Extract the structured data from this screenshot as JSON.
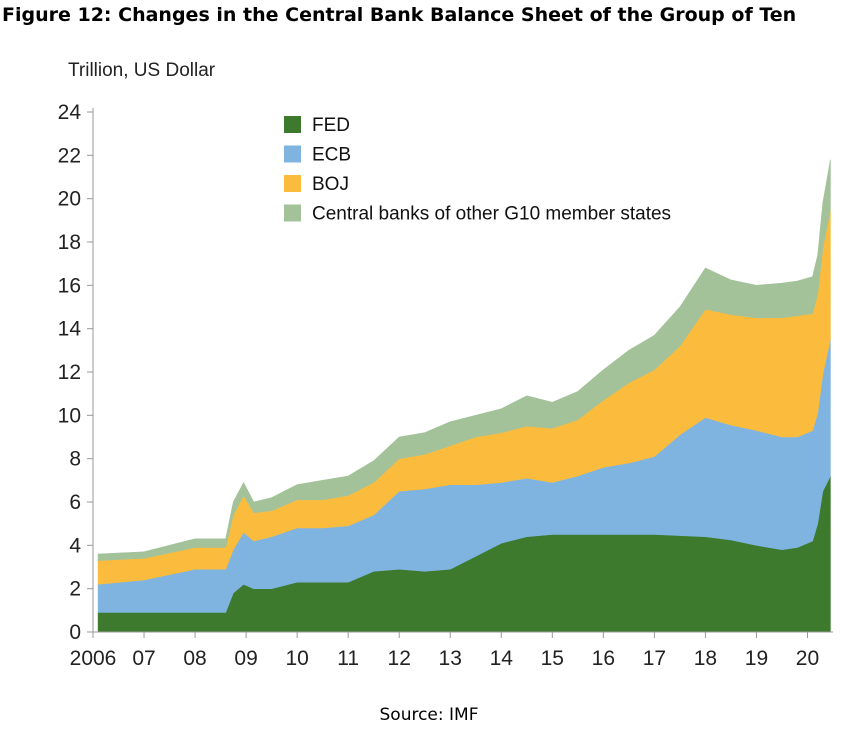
{
  "title": "Figure 12: Changes in the Central Bank Balance Sheet of the Group of Ten",
  "source": "Source: IMF",
  "chart_data": {
    "type": "area",
    "stacked": true,
    "ylabel": "Trillion, US Dollar",
    "xlabel": "",
    "ylim": [
      0,
      24
    ],
    "yticks": [
      0,
      2,
      4,
      6,
      8,
      10,
      12,
      14,
      16,
      18,
      20,
      22,
      24
    ],
    "xlim": [
      2006.0,
      2020.5
    ],
    "xticks": [
      {
        "value": 2006,
        "label": "2006"
      },
      {
        "value": 2007,
        "label": "07"
      },
      {
        "value": 2008,
        "label": "08"
      },
      {
        "value": 2009,
        "label": "09"
      },
      {
        "value": 2010,
        "label": "10"
      },
      {
        "value": 2011,
        "label": "11"
      },
      {
        "value": 2012,
        "label": "12"
      },
      {
        "value": 2013,
        "label": "13"
      },
      {
        "value": 2014,
        "label": "14"
      },
      {
        "value": 2015,
        "label": "15"
      },
      {
        "value": 2016,
        "label": "16"
      },
      {
        "value": 2017,
        "label": "17"
      },
      {
        "value": 2018,
        "label": "18"
      },
      {
        "value": 2019,
        "label": "19"
      },
      {
        "value": 2020,
        "label": "20"
      }
    ],
    "legend_position": "top-center",
    "grid": false,
    "x": [
      2006.1,
      2007.0,
      2008.0,
      2008.6,
      2008.75,
      2008.95,
      2009.15,
      2009.5,
      2010.0,
      2010.5,
      2011.0,
      2011.5,
      2012.0,
      2012.5,
      2013.0,
      2013.5,
      2014.0,
      2014.5,
      2015.0,
      2015.5,
      2016.0,
      2016.5,
      2017.0,
      2017.5,
      2018.0,
      2018.5,
      2019.0,
      2019.5,
      2019.8,
      2020.1,
      2020.2,
      2020.3,
      2020.45
    ],
    "series": [
      {
        "name": "FED",
        "color": "#3d7a2e",
        "values": [
          0.9,
          0.9,
          0.9,
          0.9,
          1.8,
          2.2,
          2.0,
          2.0,
          2.3,
          2.3,
          2.3,
          2.8,
          2.9,
          2.8,
          2.9,
          3.5,
          4.1,
          4.4,
          4.5,
          4.5,
          4.5,
          4.5,
          4.5,
          4.45,
          4.4,
          4.25,
          4.0,
          3.8,
          3.9,
          4.2,
          5.0,
          6.5,
          7.2
        ]
      },
      {
        "name": "ECB",
        "color": "#7fb4e0",
        "values": [
          1.3,
          1.5,
          2.0,
          2.0,
          2.0,
          2.4,
          2.2,
          2.4,
          2.5,
          2.5,
          2.6,
          2.6,
          3.6,
          3.8,
          3.9,
          3.3,
          2.8,
          2.7,
          2.4,
          2.7,
          3.1,
          3.3,
          3.6,
          4.65,
          5.5,
          5.3,
          5.3,
          5.2,
          5.1,
          5.1,
          5.1,
          5.4,
          6.3
        ]
      },
      {
        "name": "BOJ",
        "color": "#fbbc3e",
        "values": [
          1.1,
          1.0,
          1.0,
          1.0,
          1.6,
          1.7,
          1.3,
          1.2,
          1.3,
          1.3,
          1.4,
          1.5,
          1.5,
          1.6,
          1.8,
          2.2,
          2.3,
          2.4,
          2.5,
          2.6,
          3.1,
          3.7,
          4.0,
          4.1,
          5.0,
          5.1,
          5.2,
          5.5,
          5.6,
          5.4,
          5.5,
          5.8,
          6.0
        ]
      },
      {
        "name": "Central banks of other G10 member states",
        "color": "#a3c29a",
        "values": [
          0.3,
          0.3,
          0.4,
          0.4,
          0.6,
          0.6,
          0.5,
          0.6,
          0.7,
          0.9,
          0.9,
          1.0,
          1.0,
          1.0,
          1.1,
          1.0,
          1.1,
          1.4,
          1.2,
          1.3,
          1.4,
          1.5,
          1.6,
          1.8,
          1.9,
          1.6,
          1.5,
          1.6,
          1.6,
          1.7,
          1.8,
          2.1,
          2.3
        ]
      }
    ]
  }
}
